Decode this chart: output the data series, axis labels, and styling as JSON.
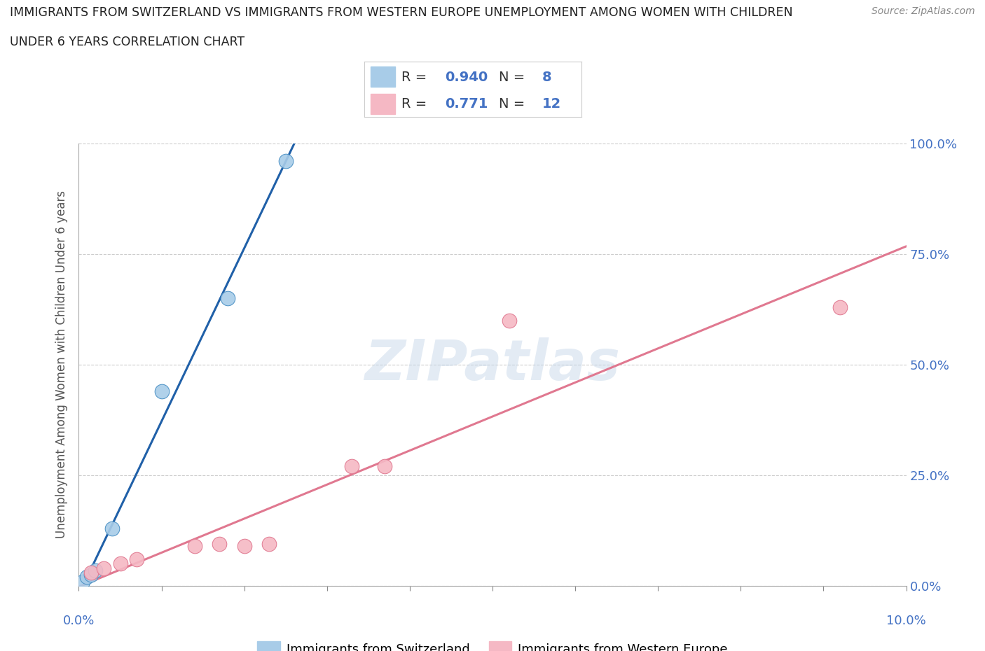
{
  "title_line1": "IMMIGRANTS FROM SWITZERLAND VS IMMIGRANTS FROM WESTERN EUROPE UNEMPLOYMENT AMONG WOMEN WITH CHILDREN",
  "title_line2": "UNDER 6 YEARS CORRELATION CHART",
  "source": "Source: ZipAtlas.com",
  "ylabel": "Unemployment Among Women with Children Under 6 years",
  "y_ticks": [
    0.0,
    25.0,
    50.0,
    75.0,
    100.0
  ],
  "x_ticks": [
    0.0,
    1.0,
    2.0,
    3.0,
    4.0,
    5.0,
    6.0,
    7.0,
    8.0,
    9.0,
    10.0
  ],
  "switzerland_points": [
    [
      0.05,
      1.0
    ],
    [
      0.1,
      2.0
    ],
    [
      0.15,
      2.5
    ],
    [
      0.2,
      3.5
    ],
    [
      0.4,
      13.0
    ],
    [
      1.0,
      44.0
    ],
    [
      1.8,
      65.0
    ],
    [
      2.5,
      96.0
    ]
  ],
  "western_europe_points": [
    [
      0.15,
      3.0
    ],
    [
      0.3,
      4.0
    ],
    [
      0.5,
      5.0
    ],
    [
      0.7,
      6.0
    ],
    [
      1.4,
      9.0
    ],
    [
      1.7,
      9.5
    ],
    [
      2.0,
      9.0
    ],
    [
      2.3,
      9.5
    ],
    [
      3.3,
      27.0
    ],
    [
      3.7,
      27.0
    ],
    [
      5.2,
      60.0
    ],
    [
      9.2,
      63.0
    ]
  ],
  "switzerland_R": 0.94,
  "switzerland_N": 8,
  "western_europe_R": 0.771,
  "western_europe_N": 12,
  "blue_fill": "#a8cce8",
  "blue_edge": "#4a90c4",
  "pink_fill": "#f5b8c4",
  "pink_edge": "#e07890",
  "blue_line_color": "#2060a8",
  "pink_line_color": "#e07890",
  "legend_label_switzerland": "Immigrants from Switzerland",
  "legend_label_western": "Immigrants from Western Europe",
  "watermark_text": "ZIPatlas",
  "watermark_color": "#c8d8ea",
  "title_color": "#222222",
  "tick_label_color": "#4472c4",
  "axis_label_color": "#555555",
  "source_color": "#888888",
  "legend_R_N_color": "#4472c4",
  "grid_color": "#cccccc"
}
